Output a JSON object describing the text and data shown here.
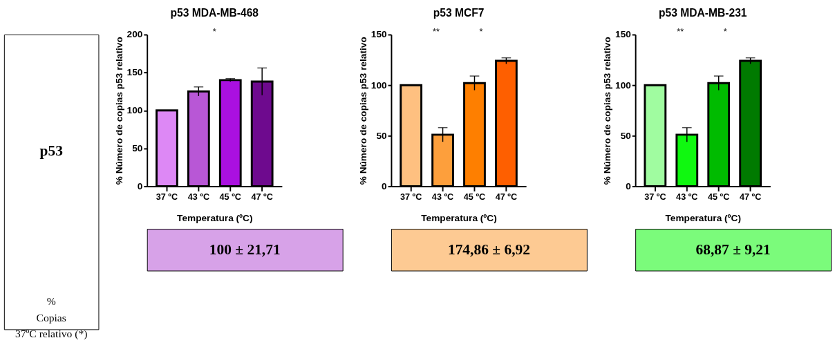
{
  "chart_data": [
    {
      "type": "other",
      "annotations": [
        "p53",
        "% Copias 37ºC relativo (*)"
      ]
    },
    {
      "type": "bar",
      "title": "p53 MDA-MB-468",
      "xlabel": "Temperatura (ºC)",
      "ylabel": "% Número de copias p53 relativo",
      "categories": [
        "37 ºC",
        "43 ºC",
        "45 ºC",
        "47 ºC"
      ],
      "values": [
        100,
        125,
        140,
        138
      ],
      "errors": [
        null,
        6,
        2,
        18
      ],
      "colors": [
        "#dd88f5",
        "#b857d6",
        "#aa10e0",
        "#6e0a8e"
      ],
      "ylim": [
        0,
        200
      ],
      "yticks": [
        0,
        50,
        100,
        150,
        200
      ],
      "annotations": [
        "*",
        "100 ± 21,71"
      ]
    },
    {
      "type": "bar",
      "title": "p53 MCF7",
      "xlabel": "Temperatura (ºC)",
      "ylabel": "% Número de copias p53 relativo",
      "categories": [
        "37 ºC",
        "43 ºC",
        "45 ºC",
        "47 ºC"
      ],
      "values": [
        100,
        51,
        102,
        124
      ],
      "errors": [
        null,
        7,
        7,
        3
      ],
      "colors": [
        "#fec080",
        "#fd9f3c",
        "#fe7f00",
        "#fe5f00"
      ],
      "ylim": [
        0,
        150
      ],
      "yticks": [
        0,
        50,
        100,
        150
      ],
      "annotations": [
        "**",
        "*",
        "174,86 ± 6,92"
      ]
    },
    {
      "type": "bar",
      "title": "p53 MDA-MB-231",
      "xlabel": "Temperatura (ºC)",
      "ylabel": "% Número de copias p53 relativo",
      "categories": [
        "37 ºC",
        "43 ºC",
        "45 ºC",
        "47 ºC"
      ],
      "values": [
        100,
        51,
        102,
        124
      ],
      "errors": [
        null,
        7,
        7,
        3
      ],
      "colors": [
        "#a0fca0",
        "#10f810",
        "#00bb00",
        "#007a00"
      ],
      "ylim": [
        0,
        150
      ],
      "yticks": [
        0,
        50,
        100,
        150
      ],
      "annotations": [
        "**",
        "*",
        "68,87 ± 9,21"
      ]
    }
  ]
}
